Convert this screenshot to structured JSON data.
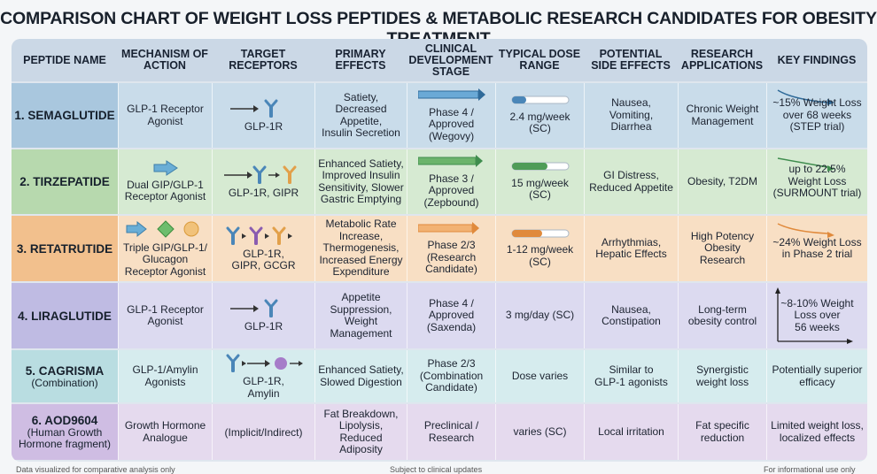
{
  "title": "COMPARISON CHART OF WEIGHT LOSS PEPTIDES & METABOLIC RESEARCH CANDIDATES FOR OBESITY TREATMENT",
  "headers": [
    "PEPTIDE NAME",
    "MECHANISM OF\nACTION",
    "TARGET\nRECEPTORS",
    "PRIMARY\nEFFECTS",
    "CLINICAL\nDEVELOPMENT\nSTAGE",
    "TYPICAL DOSE\nRANGE",
    "POTENTIAL\nSIDE EFFECTS",
    "RESEARCH\nAPPLICATIONS",
    "KEY FINDINGS"
  ],
  "rows": [
    {
      "name": "1. SEMAGLUTIDE",
      "name_sub": "",
      "mechanism": "GLP-1 Receptor\nAgonist",
      "receptors": "GLP-1R",
      "effects": "Satiety,\nDecreased Appetite,\nInsulin Secretion",
      "stage": "Phase 4 /\nApproved\n(Wegovy)",
      "stage_progress": 1.0,
      "dose": "2.4 mg/week\n(SC)",
      "dose_level": 0.25,
      "side_effects": "Nausea,\nVomiting,\nDiarrhea",
      "applications": "Chronic Weight\nManagement",
      "findings": "~15% Weight Loss\nover 68 weeks\n(STEP trial)",
      "trend_icon": "down-trend-icon",
      "color": "#c9dcea"
    },
    {
      "name": "2. TIRZEPATIDE",
      "name_sub": "",
      "mechanism": "Dual GIP/GLP-1\nReceptor Agonist",
      "receptors": "GLP-1R, GIPR",
      "effects": "Enhanced Satiety,\nImproved Insulin\nSensitivity, Slower\nGastric Emptying",
      "stage": "Phase 3 /\nApproved\n(Zepbound)",
      "stage_progress": 0.95,
      "dose": "15 mg/week\n(SC)",
      "dose_level": 0.65,
      "side_effects": "GI Distress,\nReduced Appetite",
      "applications": "Obesity, T2DM",
      "findings": "up to 22.5%\nWeight Loss\n(SURMOUNT trial)",
      "trend_icon": "down-trend-icon",
      "color": "#d6ead2"
    },
    {
      "name": "3. RETATRUTIDE",
      "name_sub": "",
      "mechanism": "Triple GIP/GLP-1/\nGlucagon\nReceptor Agonist",
      "receptors": "GLP-1R,\nGIPR, GCGR",
      "effects": "Metabolic Rate\nIncrease,\nThermogenesis,\nIncreased Energy\nExpenditure",
      "stage": "Phase 2/3\n(Research\nCandidate)",
      "stage_progress": 0.9,
      "dose": "1-12 mg/week\n(SC)",
      "dose_level": 0.55,
      "side_effects": "Arrhythmias,\nHepatic Effects",
      "applications": "High Potency\nObesity Research",
      "findings": "~24% Weight Loss\nin Phase 2 trial",
      "trend_icon": "down-trend-icon",
      "color": "#f8dfc4"
    },
    {
      "name": "4. LIRAGLUTIDE",
      "name_sub": "",
      "mechanism": "GLP-1 Receptor\nAgonist",
      "receptors": "GLP-1R",
      "effects": "Appetite\nSuppression,\nWeight\nManagement",
      "stage": "Phase 4 /\nApproved\n(Saxenda)",
      "stage_progress": 0,
      "dose": "3 mg/day (SC)",
      "dose_level": 0,
      "side_effects": "Nausea,\nConstipation",
      "applications": "Long-term\nobesity control",
      "findings": "~8-10% Weight\nLoss over\n56 weeks",
      "trend_icon": "axes-icon",
      "color": "#dcdaf0"
    },
    {
      "name": "5. CAGRISMA",
      "name_sub": "(Combination)",
      "mechanism": "GLP-1/Amylin\nAgonists",
      "receptors": "GLP-1R,\nAmylin",
      "effects": "Enhanced Satiety,\nSlowed Digestion",
      "stage": "Phase 2/3\n(Combination\nCandidate)",
      "stage_progress": 0,
      "dose": "Dose varies",
      "dose_level": 0,
      "side_effects": "Similar to\nGLP-1 agonists",
      "applications": "Synergistic\nweight loss",
      "findings": "Potentially superior\nefficacy",
      "trend_icon": "",
      "color": "#d6ecee"
    },
    {
      "name": "6. AOD9604",
      "name_sub": "(Human Growth\nHormone fragment)",
      "mechanism": "Growth Hormone\nAnalogue",
      "receptors": "(Implicit/Indirect)",
      "effects": "Fat Breakdown,\nLipolysis,\nReduced Adiposity",
      "stage": "Preclinical /\nResearch",
      "stage_progress": 0,
      "dose": "varies (SC)",
      "dose_level": 0,
      "side_effects": "Local irritation",
      "applications": "Fat specific\nreduction",
      "findings": "Limited weight loss,\nlocalized effects",
      "trend_icon": "",
      "color": "#e5daee"
    }
  ],
  "footer": {
    "left": "Data visualized for comparative analysis only",
    "center": "Subject to clinical updates",
    "right": "For informational use only"
  }
}
